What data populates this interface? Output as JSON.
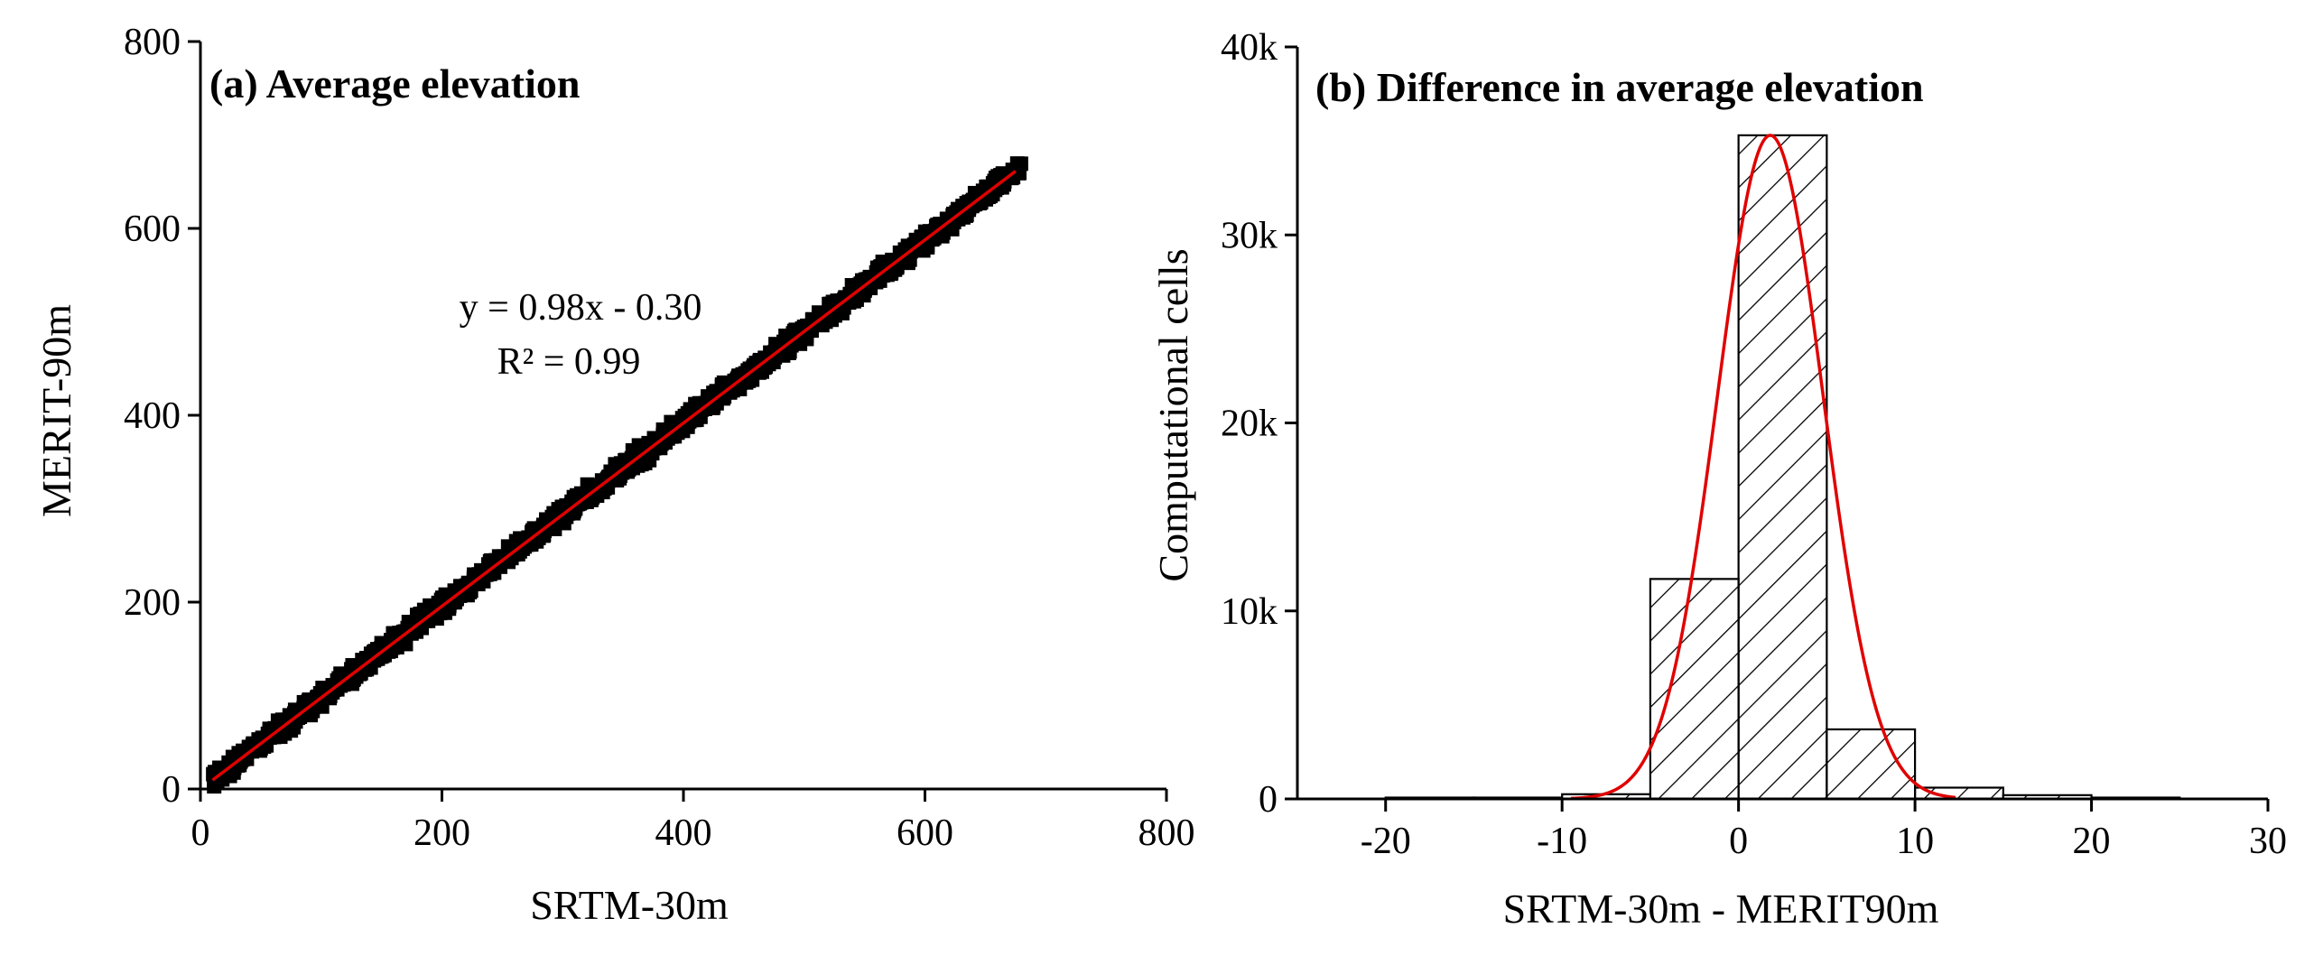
{
  "colors": {
    "fit_line": "#e00000",
    "points": "#000000",
    "axis": "#000000"
  },
  "chart_data": [
    {
      "type": "scatter",
      "title": "(a) Average elevation",
      "xlabel": "SRTM-30m",
      "ylabel": "MERIT-90m",
      "xlim": [
        0,
        800
      ],
      "ylim": [
        0,
        800
      ],
      "xticks": [
        0,
        200,
        400,
        600,
        800
      ],
      "yticks": [
        0,
        200,
        400,
        600,
        800
      ],
      "xtick_labels": [
        "0",
        "200",
        "400",
        "600",
        "800"
      ],
      "ytick_labels": [
        "0",
        "200",
        "400",
        "600",
        "800"
      ],
      "fit": {
        "slope": 0.98,
        "intercept": -0.3,
        "x_range": [
          10,
          675
        ]
      },
      "equation": "y = 0.98x - 0.30",
      "r_squared": "R² = 0.99",
      "points": {
        "count": 1300,
        "x_range": [
          10,
          680
        ],
        "slope": 0.98,
        "intercept": -0.3,
        "scatter_halfwidth": 14
      },
      "grid": false
    },
    {
      "type": "bar",
      "subtype": "histogram",
      "title": "(b) Difference in average elevation",
      "xlabel": "SRTM-30m - MERIT90m",
      "ylabel": "Computational cells",
      "xlim": [
        -25,
        30
      ],
      "ylim": [
        0,
        40000
      ],
      "xticks": [
        -20,
        -10,
        0,
        10,
        20,
        30
      ],
      "yticks": [
        0,
        10000,
        20000,
        30000,
        40000
      ],
      "xtick_labels": [
        "-20",
        "-10",
        "0",
        "10",
        "20",
        "30"
      ],
      "ytick_labels": [
        "0",
        "10k",
        "20k",
        "30k",
        "40k"
      ],
      "bins": [
        {
          "start": -20,
          "end": -15,
          "count": 30
        },
        {
          "start": -15,
          "end": -10,
          "count": 60
        },
        {
          "start": -10,
          "end": -5,
          "count": 250
        },
        {
          "start": -5,
          "end": 0,
          "count": 11700
        },
        {
          "start": 0,
          "end": 5,
          "count": 35300
        },
        {
          "start": 5,
          "end": 10,
          "count": 3700
        },
        {
          "start": 10,
          "end": 15,
          "count": 600
        },
        {
          "start": 15,
          "end": 20,
          "count": 200
        },
        {
          "start": 20,
          "end": 25,
          "count": 60
        }
      ],
      "normal_fit": {
        "mean": 1.8,
        "sd": 3.0,
        "peak": 35300,
        "x_range": [
          -9.5,
          12.3
        ]
      },
      "grid": false
    }
  ]
}
